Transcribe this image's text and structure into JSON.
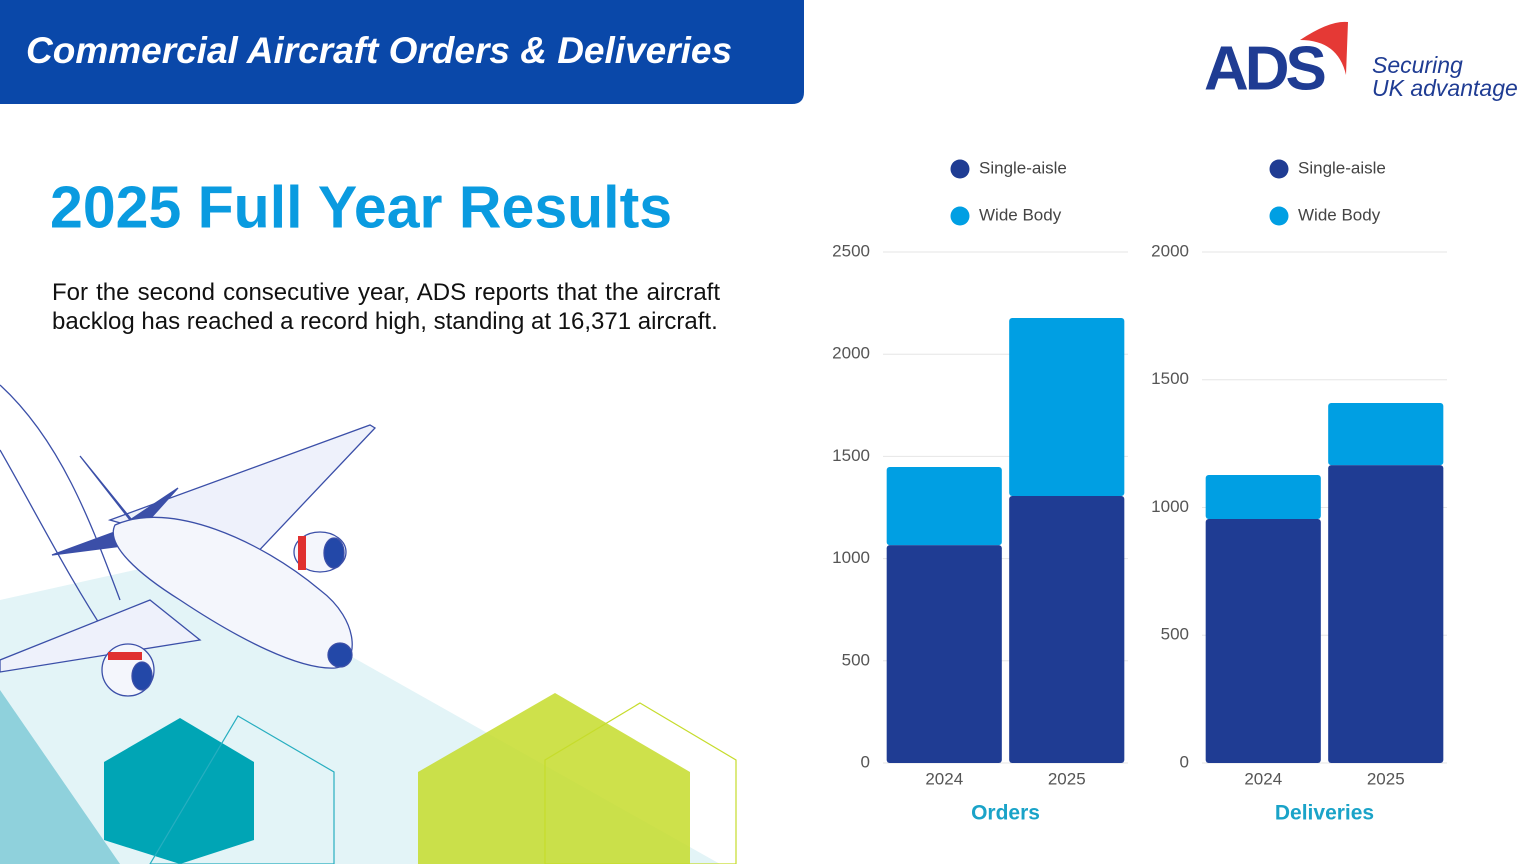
{
  "header": {
    "title": "Commercial Aircraft Orders & Deliveries"
  },
  "logo": {
    "name": "ADS",
    "tagline_line1": "Securing",
    "tagline_line2": "UK advantage"
  },
  "heading": "2025 Full Year Results",
  "body": "For the second consecutive year, ADS reports that the aircraft backlog has reached a record high, standing at 16,371 aircraft.",
  "chart_data": [
    {
      "type": "bar",
      "stacked": true,
      "x_label": "Orders",
      "categories": [
        "2024",
        "2025"
      ],
      "series": [
        {
          "name": "Single-aisle",
          "color": "#1f3c93",
          "values": [
            1066,
            1306
          ]
        },
        {
          "name": "Wide Body",
          "color": "#009fe3",
          "values": [
            382,
            871
          ]
        }
      ],
      "ylim": [
        0,
        2500
      ],
      "yticks": [
        0,
        500,
        1000,
        1500,
        2000,
        2500
      ],
      "grid": true
    },
    {
      "type": "bar",
      "stacked": true,
      "x_label": "Deliveries",
      "categories": [
        "2024",
        "2025"
      ],
      "series": [
        {
          "name": "Single-aisle",
          "color": "#1f3c93",
          "values": [
            955,
            1166
          ]
        },
        {
          "name": "Wide Body",
          "color": "#009fe3",
          "values": [
            172,
            243
          ]
        }
      ],
      "ylim": [
        0,
        2000
      ],
      "yticks": [
        0,
        500,
        1000,
        1500,
        2000
      ],
      "grid": true
    }
  ]
}
